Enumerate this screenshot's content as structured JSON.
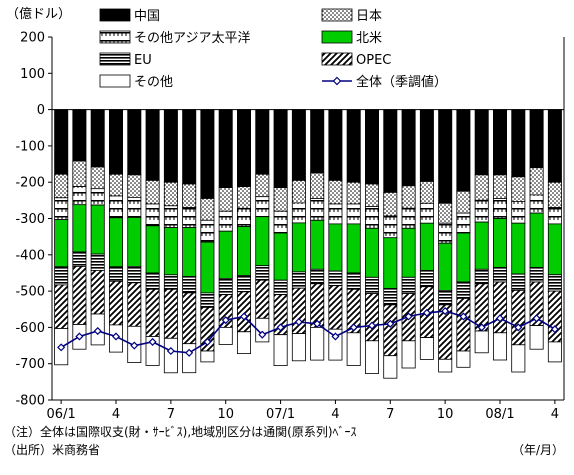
{
  "chart_data": {
    "type": "bar",
    "stacked": true,
    "y_unit_label": "（億ドル）",
    "x_unit_label": "（年/月）",
    "ylim": [
      -800,
      200
    ],
    "y_ticks": [
      200,
      100,
      0,
      -100,
      -200,
      -300,
      -400,
      -500,
      -600,
      -700,
      -800
    ],
    "grid": false,
    "legend_placement": "top",
    "x_tick_labels": [
      "06/1",
      "4",
      "7",
      "10",
      "07/1",
      "4",
      "7",
      "10",
      "08/1",
      "4"
    ],
    "x_tick_indices": [
      0,
      3,
      6,
      9,
      12,
      15,
      18,
      21,
      24,
      27
    ],
    "categories": [
      "06/1",
      "06/2",
      "06/3",
      "06/4",
      "06/5",
      "06/6",
      "06/7",
      "06/8",
      "06/9",
      "06/10",
      "06/11",
      "06/12",
      "07/1",
      "07/2",
      "07/3",
      "07/4",
      "07/5",
      "07/6",
      "07/7",
      "07/8",
      "07/9",
      "07/10",
      "07/11",
      "07/12",
      "08/1",
      "08/2",
      "08/3",
      "08/4"
    ],
    "series": [
      {
        "name": "中国",
        "color": "#000000",
        "pattern": "solid-black",
        "values": [
          -178,
          -142,
          -158,
          -178,
          -180,
          -195,
          -200,
          -205,
          -245,
          -215,
          -212,
          -178,
          -215,
          -195,
          -175,
          -195,
          -200,
          -205,
          -228,
          -210,
          -198,
          -258,
          -225,
          -180,
          -180,
          -185,
          -160,
          -200
        ]
      },
      {
        "name": "日本",
        "color": "#ffffff",
        "pattern": "dots",
        "values": [
          -65,
          -70,
          -60,
          -60,
          -62,
          -65,
          -65,
          -65,
          -60,
          -65,
          -60,
          -62,
          -65,
          -62,
          -70,
          -65,
          -60,
          -62,
          -65,
          -62,
          -60,
          -55,
          -60,
          -70,
          -65,
          -68,
          -75,
          -70
        ]
      },
      {
        "name": "その他アジア太平洋",
        "color": "#ffffff",
        "pattern": "ticks",
        "values": [
          -60,
          -50,
          -45,
          -60,
          -55,
          -60,
          -60,
          -55,
          -60,
          -55,
          -50,
          -55,
          -60,
          -55,
          -60,
          -55,
          -55,
          -60,
          -60,
          -55,
          -55,
          -55,
          -55,
          -60,
          -55,
          -60,
          -50,
          -45
        ]
      },
      {
        "name": "北米",
        "color": "#00cc00",
        "pattern": "solid-green",
        "values": [
          -130,
          -130,
          -135,
          -135,
          -135,
          -130,
          -130,
          -135,
          -140,
          -130,
          -135,
          -135,
          -130,
          -135,
          -135,
          -130,
          -135,
          -135,
          -140,
          -135,
          -130,
          -130,
          -135,
          -130,
          -135,
          -140,
          -150,
          -140
        ]
      },
      {
        "name": "EU",
        "color": "#ffffff",
        "pattern": "hlines",
        "values": [
          -50,
          -40,
          -45,
          -40,
          -45,
          -45,
          -40,
          -45,
          -40,
          -45,
          -45,
          -40,
          -40,
          -45,
          -40,
          -40,
          -45,
          -45,
          -45,
          -45,
          -45,
          -40,
          -45,
          -40,
          -40,
          -45,
          -40,
          -45
        ]
      },
      {
        "name": "OPEC",
        "color": "#ffffff",
        "pattern": "diagonal",
        "values": [
          -120,
          -160,
          -120,
          -120,
          -120,
          -130,
          -135,
          -140,
          -120,
          -90,
          -110,
          -105,
          -110,
          -125,
          -120,
          -120,
          -120,
          -130,
          -140,
          -130,
          -140,
          -150,
          -145,
          -130,
          -140,
          -150,
          -120,
          -140
        ]
      },
      {
        "name": "その他",
        "color": "#ffffff",
        "pattern": "white",
        "values": [
          -100,
          -68,
          -85,
          -75,
          -100,
          -80,
          -95,
          -80,
          -30,
          -47,
          -60,
          -65,
          -85,
          -75,
          -90,
          -85,
          -90,
          -90,
          -62,
          -75,
          -60,
          -35,
          -45,
          -60,
          -75,
          -75,
          -65,
          -55
        ]
      }
    ],
    "line_series": {
      "name": "全体（季調値）",
      "color": "#000080",
      "marker": "diamond",
      "values": [
        -655,
        -625,
        -610,
        -625,
        -650,
        -640,
        -665,
        -670,
        -640,
        -580,
        -570,
        -620,
        -600,
        -585,
        -590,
        -625,
        -600,
        -595,
        -590,
        -570,
        -560,
        -555,
        -570,
        -600,
        -575,
        -600,
        -575,
        -605
      ]
    }
  },
  "notes": {
    "note1": "（注）全体は国際収支(財・ｻｰﾋﾞｽ),地域別区分は通関(原系列)ﾍﾞｰｽ",
    "source": "（出所）米商務省"
  }
}
